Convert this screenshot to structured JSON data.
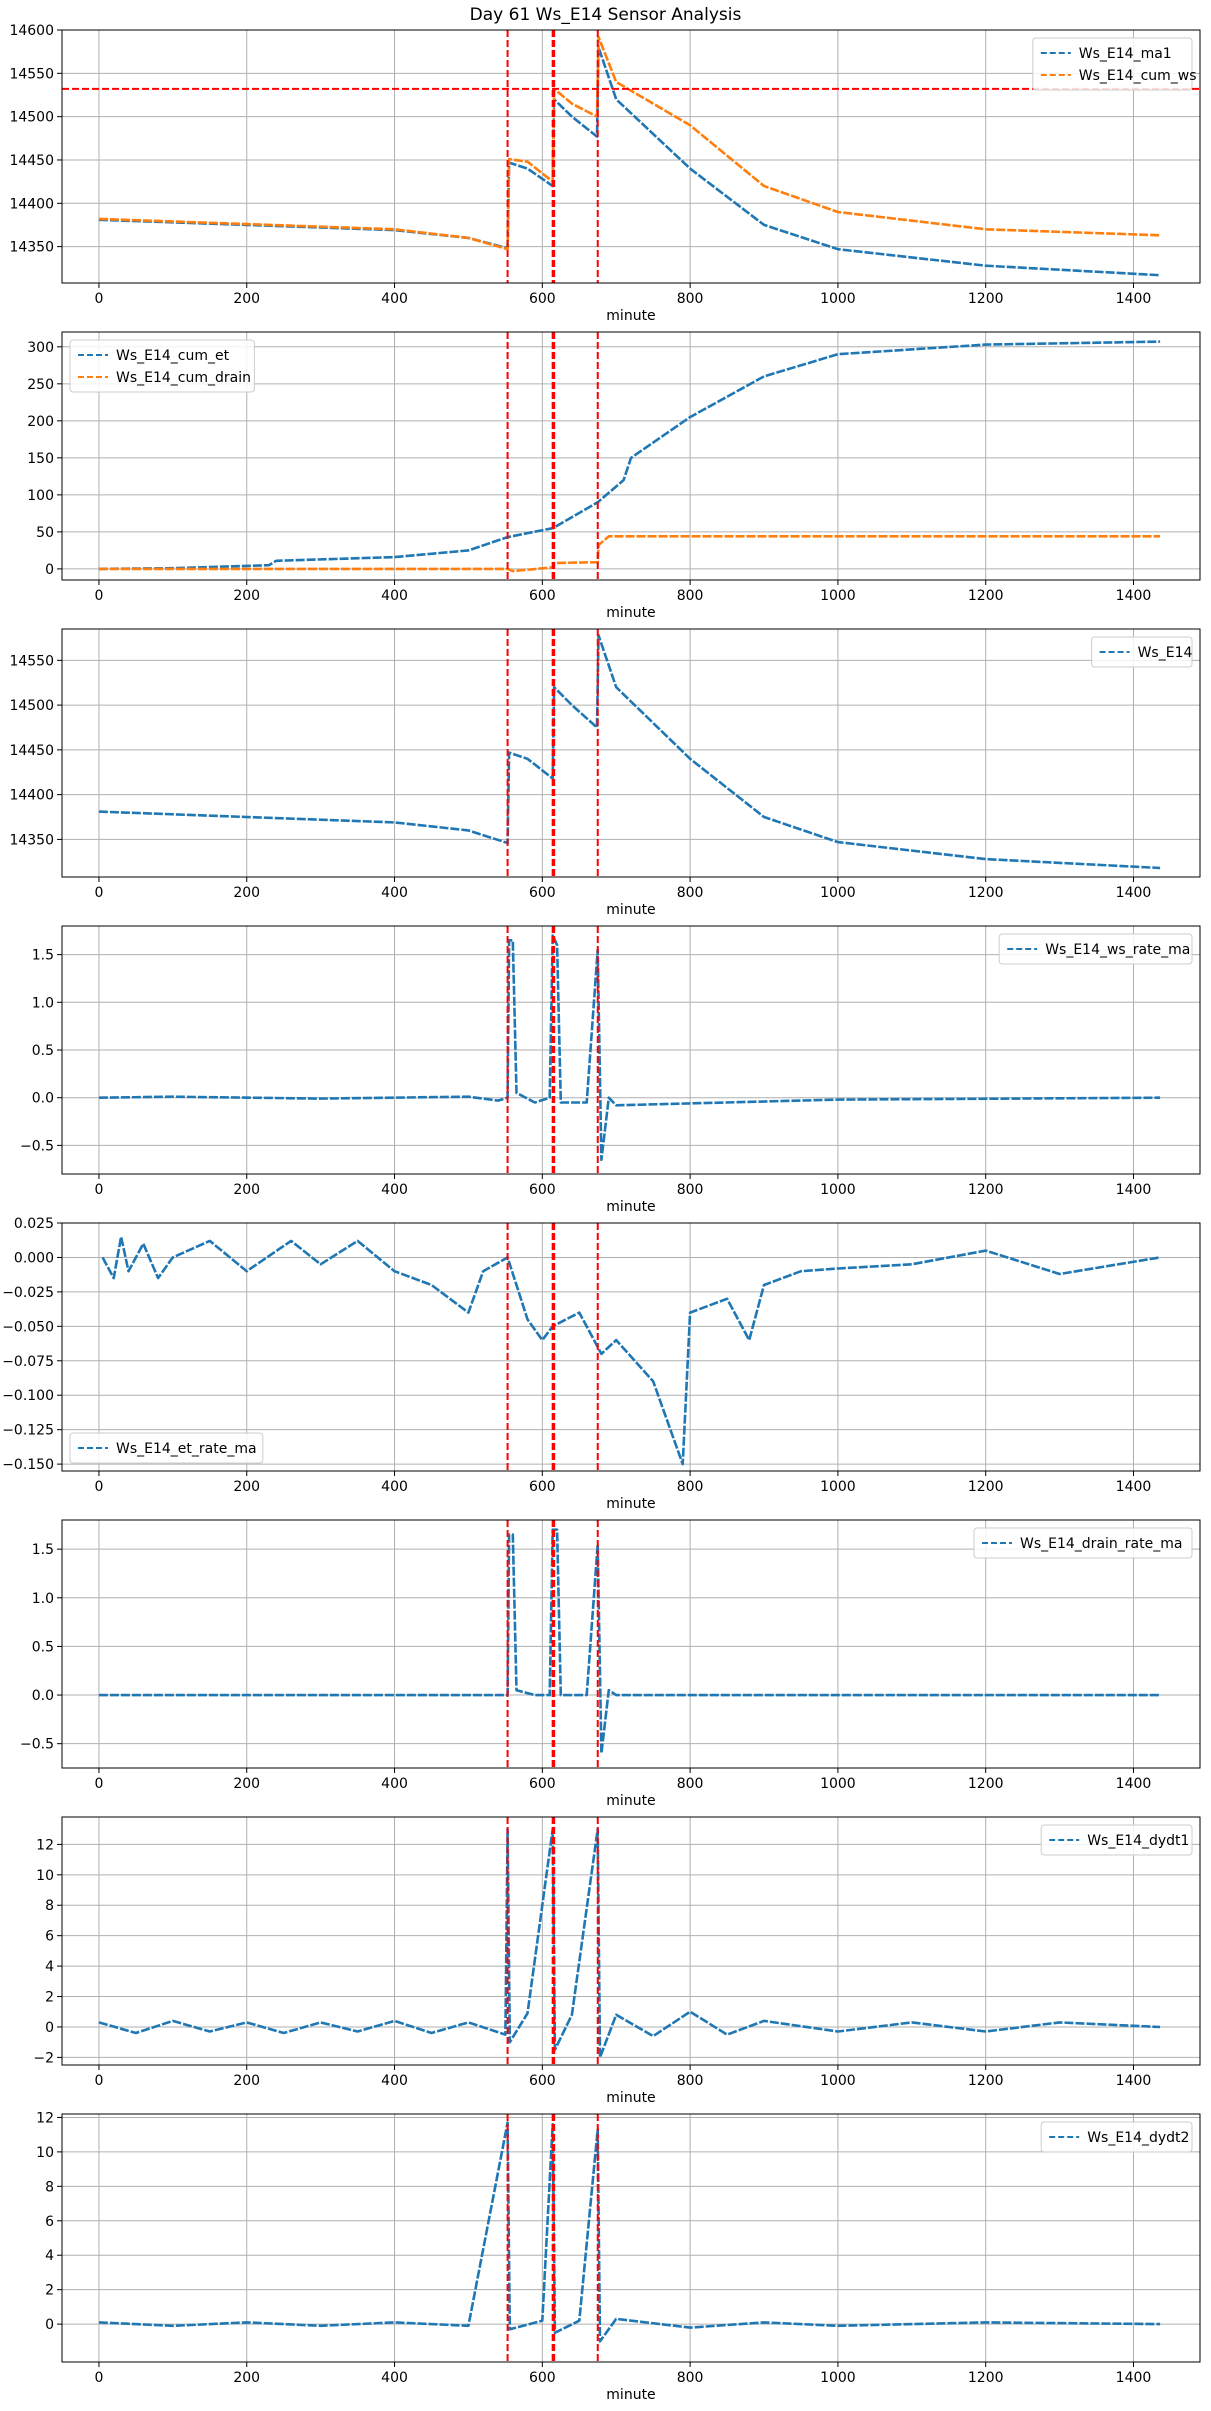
{
  "figure": {
    "title": "Day 61 Ws_E14 Sensor Analysis"
  },
  "colors": {
    "blue": "#1f77b4",
    "orange": "#ff7f0e",
    "red": "#ff0000",
    "grid": "#b0b0b0"
  },
  "event_lines_x": [
    553,
    614,
    616,
    675
  ],
  "chart_data": [
    {
      "type": "line",
      "xlabel": "minute",
      "xlim": [
        -50,
        1490
      ],
      "ylim": [
        14308,
        14600
      ],
      "xticks": [
        0,
        200,
        400,
        600,
        800,
        1000,
        1200,
        1400
      ],
      "yticks": [
        14350,
        14400,
        14450,
        14500,
        14550,
        14600
      ],
      "grid": true,
      "legend_loc": "upper right",
      "hline_y": 14532,
      "series": [
        {
          "name": "Ws_E14_ma1",
          "color": "blue",
          "points": [
            [
              0,
              14381
            ],
            [
              200,
              14375
            ],
            [
              400,
              14369
            ],
            [
              500,
              14360
            ],
            [
              553,
              14348
            ],
            [
              555,
              14447
            ],
            [
              580,
              14440
            ],
            [
              614,
              14420
            ],
            [
              616,
              14520
            ],
            [
              640,
              14500
            ],
            [
              674,
              14477
            ],
            [
              676,
              14580
            ],
            [
              700,
              14520
            ],
            [
              800,
              14440
            ],
            [
              900,
              14375
            ],
            [
              1000,
              14347
            ],
            [
              1200,
              14328
            ],
            [
              1436,
              14317
            ]
          ]
        },
        {
          "name": "Ws_E14_cum_ws",
          "color": "orange",
          "points": [
            [
              0,
              14382
            ],
            [
              200,
              14376
            ],
            [
              400,
              14370
            ],
            [
              500,
              14360
            ],
            [
              553,
              14347
            ],
            [
              555,
              14451
            ],
            [
              580,
              14448
            ],
            [
              614,
              14425
            ],
            [
              616,
              14532
            ],
            [
              640,
              14515
            ],
            [
              674,
              14500
            ],
            [
              676,
              14592
            ],
            [
              700,
              14540
            ],
            [
              800,
              14490
            ],
            [
              900,
              14420
            ],
            [
              1000,
              14390
            ],
            [
              1200,
              14370
            ],
            [
              1436,
              14363
            ]
          ]
        }
      ]
    },
    {
      "type": "line",
      "xlabel": "minute",
      "xlim": [
        -50,
        1490
      ],
      "ylim": [
        -15,
        320
      ],
      "xticks": [
        0,
        200,
        400,
        600,
        800,
        1000,
        1200,
        1400
      ],
      "yticks": [
        0,
        50,
        100,
        150,
        200,
        250,
        300
      ],
      "grid": true,
      "legend_loc": "upper left",
      "series": [
        {
          "name": "Ws_E14_cum_et",
          "color": "blue",
          "points": [
            [
              0,
              0
            ],
            [
              100,
              1
            ],
            [
              230,
              5
            ],
            [
              240,
              11
            ],
            [
              400,
              16
            ],
            [
              500,
              25
            ],
            [
              553,
              43
            ],
            [
              614,
              55
            ],
            [
              675,
              90
            ],
            [
              710,
              120
            ],
            [
              720,
              150
            ],
            [
              800,
              205
            ],
            [
              900,
              260
            ],
            [
              1000,
              290
            ],
            [
              1200,
              303
            ],
            [
              1436,
              307
            ]
          ]
        },
        {
          "name": "Ws_E14_cum_drain",
          "color": "orange",
          "points": [
            [
              0,
              0
            ],
            [
              553,
              0
            ],
            [
              560,
              -3
            ],
            [
              614,
              2
            ],
            [
              616,
              8
            ],
            [
              675,
              9
            ],
            [
              676,
              32
            ],
            [
              690,
              44
            ],
            [
              1436,
              44
            ]
          ]
        }
      ]
    },
    {
      "type": "line",
      "xlabel": "minute",
      "xlim": [
        -50,
        1490
      ],
      "ylim": [
        14308,
        14585
      ],
      "xticks": [
        0,
        200,
        400,
        600,
        800,
        1000,
        1200,
        1400
      ],
      "yticks": [
        14350,
        14400,
        14450,
        14500,
        14550
      ],
      "grid": true,
      "legend_loc": "upper right",
      "series": [
        {
          "name": "Ws_E14",
          "color": "blue",
          "points": [
            [
              0,
              14381
            ],
            [
              200,
              14375
            ],
            [
              400,
              14369
            ],
            [
              500,
              14360
            ],
            [
              553,
              14346
            ],
            [
              555,
              14447
            ],
            [
              580,
              14440
            ],
            [
              614,
              14418
            ],
            [
              616,
              14520
            ],
            [
              640,
              14500
            ],
            [
              674,
              14475
            ],
            [
              676,
              14578
            ],
            [
              700,
              14520
            ],
            [
              800,
              14440
            ],
            [
              900,
              14375
            ],
            [
              1000,
              14347
            ],
            [
              1200,
              14328
            ],
            [
              1436,
              14318
            ]
          ]
        }
      ]
    },
    {
      "type": "line",
      "xlabel": "minute",
      "xlim": [
        -50,
        1490
      ],
      "ylim": [
        -0.8,
        1.8
      ],
      "xticks": [
        0,
        200,
        400,
        600,
        800,
        1000,
        1200,
        1400
      ],
      "yticks": [
        -0.5,
        0.0,
        0.5,
        1.0,
        1.5
      ],
      "grid": true,
      "legend_loc": "upper right",
      "series": [
        {
          "name": "Ws_E14_ws_rate_ma",
          "color": "blue",
          "points": [
            [
              0,
              0
            ],
            [
              100,
              0.01
            ],
            [
              300,
              -0.01
            ],
            [
              500,
              0.01
            ],
            [
              540,
              -0.03
            ],
            [
              553,
              0
            ],
            [
              555,
              1.65
            ],
            [
              560,
              1.65
            ],
            [
              565,
              0.05
            ],
            [
              590,
              -0.05
            ],
            [
              610,
              0
            ],
            [
              614,
              1.7
            ],
            [
              620,
              1.6
            ],
            [
              625,
              -0.05
            ],
            [
              660,
              -0.05
            ],
            [
              675,
              1.55
            ],
            [
              680,
              -0.65
            ],
            [
              690,
              0.0
            ],
            [
              700,
              -0.08
            ],
            [
              800,
              -0.06
            ],
            [
              1000,
              -0.02
            ],
            [
              1436,
              0
            ]
          ]
        }
      ]
    },
    {
      "type": "line",
      "xlabel": "minute",
      "xlim": [
        -50,
        1490
      ],
      "ylim": [
        -0.155,
        0.025
      ],
      "xticks": [
        0,
        200,
        400,
        600,
        800,
        1000,
        1200,
        1400
      ],
      "yticks": [
        -0.15,
        -0.125,
        -0.1,
        -0.075,
        -0.05,
        -0.025,
        0.0,
        0.025
      ],
      "ytick_labels": [
        "−0.150",
        "−0.125",
        "−0.100",
        "−0.075",
        "−0.050",
        "−0.025",
        "0.000",
        "0.025"
      ],
      "grid": true,
      "legend_loc": "lower left",
      "series": [
        {
          "name": "Ws_E14_et_rate_ma",
          "color": "blue",
          "points": [
            [
              5,
              0
            ],
            [
              20,
              -0.015
            ],
            [
              30,
              0.015
            ],
            [
              40,
              -0.01
            ],
            [
              60,
              0.01
            ],
            [
              80,
              -0.015
            ],
            [
              100,
              0
            ],
            [
              150,
              0.012
            ],
            [
              200,
              -0.01
            ],
            [
              260,
              0.012
            ],
            [
              300,
              -0.005
            ],
            [
              350,
              0.012
            ],
            [
              400,
              -0.01
            ],
            [
              450,
              -0.02
            ],
            [
              500,
              -0.04
            ],
            [
              520,
              -0.01
            ],
            [
              553,
              0
            ],
            [
              580,
              -0.045
            ],
            [
              600,
              -0.06
            ],
            [
              614,
              -0.05
            ],
            [
              650,
              -0.04
            ],
            [
              680,
              -0.07
            ],
            [
              700,
              -0.06
            ],
            [
              750,
              -0.09
            ],
            [
              790,
              -0.15
            ],
            [
              800,
              -0.04
            ],
            [
              850,
              -0.03
            ],
            [
              880,
              -0.06
            ],
            [
              900,
              -0.02
            ],
            [
              950,
              -0.01
            ],
            [
              1000,
              -0.008
            ],
            [
              1100,
              -0.005
            ],
            [
              1200,
              0.005
            ],
            [
              1300,
              -0.012
            ],
            [
              1436,
              0
            ]
          ]
        }
      ]
    },
    {
      "type": "line",
      "xlabel": "minute",
      "xlim": [
        -50,
        1490
      ],
      "ylim": [
        -0.75,
        1.8
      ],
      "xticks": [
        0,
        200,
        400,
        600,
        800,
        1000,
        1200,
        1400
      ],
      "yticks": [
        -0.5,
        0.0,
        0.5,
        1.0,
        1.5
      ],
      "grid": true,
      "legend_loc": "upper right",
      "series": [
        {
          "name": "Ws_E14_drain_rate_ma",
          "color": "blue",
          "points": [
            [
              0,
              0
            ],
            [
              553,
              0
            ],
            [
              555,
              1.65
            ],
            [
              560,
              1.65
            ],
            [
              565,
              0.05
            ],
            [
              590,
              0
            ],
            [
              610,
              0
            ],
            [
              614,
              1.7
            ],
            [
              620,
              1.7
            ],
            [
              625,
              0
            ],
            [
              660,
              0
            ],
            [
              675,
              1.55
            ],
            [
              680,
              -0.6
            ],
            [
              690,
              0.05
            ],
            [
              700,
              0
            ],
            [
              1436,
              0
            ]
          ]
        }
      ]
    },
    {
      "type": "line",
      "xlabel": "minute",
      "xlim": [
        -50,
        1490
      ],
      "ylim": [
        -2.5,
        13.8
      ],
      "xticks": [
        0,
        200,
        400,
        600,
        800,
        1000,
        1200,
        1400
      ],
      "yticks": [
        -2,
        0,
        2,
        4,
        6,
        8,
        10,
        12
      ],
      "grid": true,
      "legend_loc": "upper right",
      "series": [
        {
          "name": "Ws_E14_dydt1",
          "color": "blue",
          "points": [
            [
              0,
              0.3
            ],
            [
              50,
              -0.4
            ],
            [
              100,
              0.4
            ],
            [
              150,
              -0.3
            ],
            [
              200,
              0.3
            ],
            [
              250,
              -0.4
            ],
            [
              300,
              0.3
            ],
            [
              350,
              -0.3
            ],
            [
              400,
              0.4
            ],
            [
              450,
              -0.4
            ],
            [
              500,
              0.3
            ],
            [
              550,
              -0.5
            ],
            [
              553,
              13
            ],
            [
              556,
              -1
            ],
            [
              580,
              0.9
            ],
            [
              614,
              13
            ],
            [
              617,
              -1.5
            ],
            [
              640,
              0.8
            ],
            [
              675,
              13
            ],
            [
              678,
              -2
            ],
            [
              700,
              0.8
            ],
            [
              750,
              -0.6
            ],
            [
              800,
              1.0
            ],
            [
              850,
              -0.5
            ],
            [
              900,
              0.4
            ],
            [
              1000,
              -0.3
            ],
            [
              1100,
              0.3
            ],
            [
              1200,
              -0.3
            ],
            [
              1300,
              0.3
            ],
            [
              1436,
              0
            ]
          ]
        }
      ]
    },
    {
      "type": "line",
      "xlabel": "minute",
      "xlim": [
        -50,
        1490
      ],
      "ylim": [
        -2.2,
        12.2
      ],
      "xticks": [
        0,
        200,
        400,
        600,
        800,
        1000,
        1200,
        1400
      ],
      "yticks": [
        0,
        2,
        4,
        6,
        8,
        10,
        12
      ],
      "grid": true,
      "legend_loc": "upper right",
      "series": [
        {
          "name": "Ws_E14_dydt2",
          "color": "blue",
          "points": [
            [
              0,
              0.1
            ],
            [
              100,
              -0.1
            ],
            [
              200,
              0.1
            ],
            [
              300,
              -0.1
            ],
            [
              400,
              0.1
            ],
            [
              500,
              -0.1
            ],
            [
              553,
              11.7
            ],
            [
              556,
              -0.3
            ],
            [
              600,
              0.2
            ],
            [
              614,
              11.6
            ],
            [
              617,
              -0.5
            ],
            [
              650,
              0.2
            ],
            [
              675,
              11.3
            ],
            [
              678,
              -1.0
            ],
            [
              700,
              0.3
            ],
            [
              800,
              -0.2
            ],
            [
              900,
              0.1
            ],
            [
              1000,
              -0.1
            ],
            [
              1200,
              0.1
            ],
            [
              1436,
              0
            ]
          ]
        }
      ]
    }
  ]
}
